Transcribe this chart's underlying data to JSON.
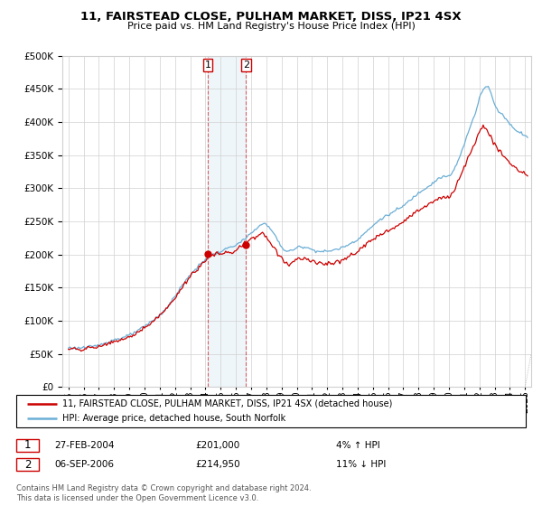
{
  "title": "11, FAIRSTEAD CLOSE, PULHAM MARKET, DISS, IP21 4SX",
  "subtitle": "Price paid vs. HM Land Registry's House Price Index (HPI)",
  "legend_line1": "11, FAIRSTEAD CLOSE, PULHAM MARKET, DISS, IP21 4SX (detached house)",
  "legend_line2": "HPI: Average price, detached house, South Norfolk",
  "transaction1_date": "27-FEB-2004",
  "transaction1_price": "£201,000",
  "transaction1_hpi": "4% ↑ HPI",
  "transaction2_date": "06-SEP-2006",
  "transaction2_price": "£214,950",
  "transaction2_hpi": "11% ↓ HPI",
  "footer": "Contains HM Land Registry data © Crown copyright and database right 2024.\nThis data is licensed under the Open Government Licence v3.0.",
  "hpi_color": "#6baed6",
  "price_color": "#cc0000",
  "background_color": "#ffffff",
  "grid_color": "#d0d0d0",
  "ylim": [
    0,
    500000
  ],
  "yticks": [
    0,
    50000,
    100000,
    150000,
    200000,
    250000,
    300000,
    350000,
    400000,
    450000,
    500000
  ],
  "transaction1_year": 2004.15,
  "transaction2_year": 2006.67
}
